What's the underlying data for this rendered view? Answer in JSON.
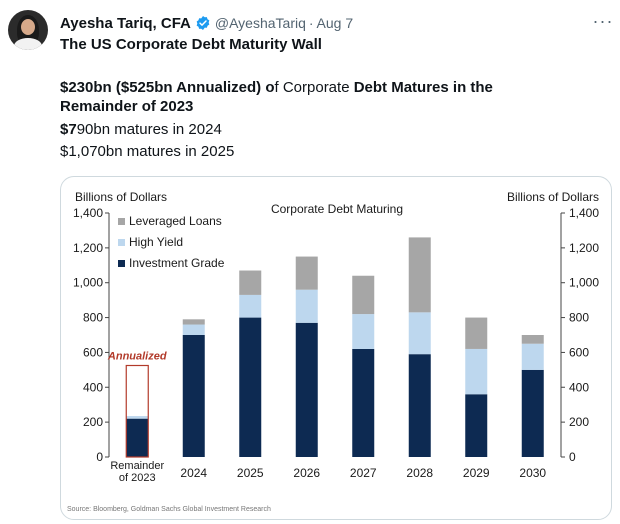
{
  "author": {
    "name": "Ayesha Tariq, CFA",
    "handle": "@AyeshaTariq",
    "separator": "·",
    "date": "Aug 7"
  },
  "more_label": "···",
  "tweet": {
    "title": "The US Corporate Debt Maturity Wall",
    "line1_part1": "$230bn ($525bn Annualized) o",
    "line1_part2": "f Corporate ",
    "line1_part3": "Debt Matures in the",
    "line2": "Remainder of 2023",
    "line3_part1": "$7",
    "line3_part2": "90bn matures in 2024",
    "line4": "$1,070bn matures in 2025"
  },
  "colors": {
    "leveraged_loans": "#a6a6a6",
    "high_yield": "#bdd7ee",
    "investment_grade": "#0d2a52",
    "annualized": "#b23a2a"
  },
  "chart_data": {
    "type": "bar",
    "stacked": true,
    "title": "Corporate Debt Maturing",
    "ylabel_left": "Billions of Dollars",
    "ylabel_right": "Billions of Dollars",
    "ylim": [
      0,
      1400
    ],
    "yticks": [
      "0",
      "200",
      "400",
      "600",
      "800",
      "1,000",
      "1,200",
      "1,400"
    ],
    "categories": [
      "Remainder\nof 2023",
      "2024",
      "2025",
      "2026",
      "2027",
      "2028",
      "2029",
      "2030"
    ],
    "series": [
      {
        "name": "Investment Grade",
        "values": [
          220,
          700,
          800,
          770,
          620,
          590,
          360,
          500
        ]
      },
      {
        "name": "High Yield",
        "values": [
          15,
          60,
          130,
          190,
          200,
          240,
          260,
          150
        ]
      },
      {
        "name": "Leveraged Loans",
        "values": [
          0,
          30,
          140,
          190,
          220,
          430,
          180,
          50
        ]
      }
    ],
    "annotation": {
      "label": "Annualized",
      "category": "Remainder\nof 2023",
      "value": 525
    },
    "legend_position": "top-left",
    "source": "Source: Bloomberg, Goldman Sachs Global Investment Research"
  }
}
